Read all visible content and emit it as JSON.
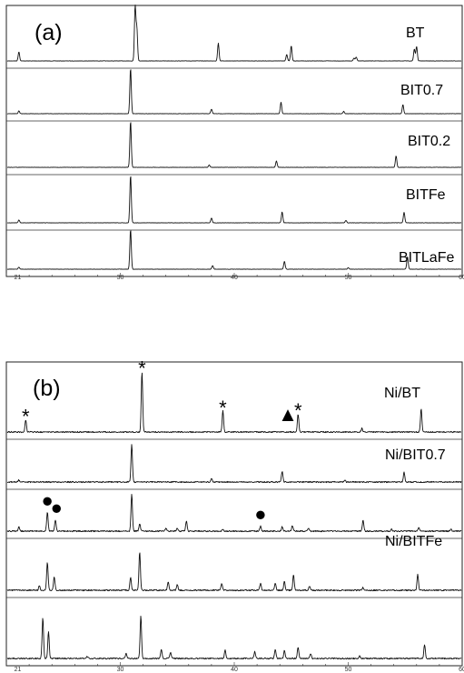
{
  "chart_data": [
    {
      "type": "line",
      "panel_label": "(a)",
      "x_ticks": [
        21,
        30,
        40,
        50,
        60
      ],
      "xlim": [
        20,
        60
      ],
      "series": [
        {
          "name": "BT",
          "peaks": [
            [
              21.1,
              0.17
            ],
            [
              31.3,
              1.0
            ],
            [
              31.45,
              0.6
            ],
            [
              38.6,
              0.33
            ],
            [
              44.6,
              0.12
            ],
            [
              45.0,
              0.28
            ],
            [
              50.5,
              0.05
            ],
            [
              50.7,
              0.07
            ],
            [
              55.8,
              0.22
            ],
            [
              56.0,
              0.27
            ]
          ],
          "markers": []
        },
        {
          "name": "BIT0.7",
          "peaks": [
            [
              21.1,
              0.06
            ],
            [
              30.9,
              1.0
            ],
            [
              38.0,
              0.1
            ],
            [
              44.1,
              0.25
            ],
            [
              49.6,
              0.05
            ],
            [
              54.8,
              0.2
            ]
          ],
          "markers": []
        },
        {
          "name": "BIT0.2",
          "peaks": [
            [
              30.9,
              1.0
            ],
            [
              37.8,
              0.05
            ],
            [
              43.7,
              0.14
            ],
            [
              54.2,
              0.25
            ]
          ],
          "markers": []
        },
        {
          "name": "BITFe",
          "peaks": [
            [
              21.1,
              0.06
            ],
            [
              30.9,
              1.0
            ],
            [
              38.0,
              0.1
            ],
            [
              44.2,
              0.23
            ],
            [
              49.8,
              0.05
            ],
            [
              54.9,
              0.22
            ]
          ],
          "markers": []
        },
        {
          "name": "BITLaFe",
          "peaks": [
            [
              21.1,
              0.05
            ],
            [
              30.9,
              1.0
            ],
            [
              38.1,
              0.09
            ],
            [
              44.4,
              0.2
            ],
            [
              50.0,
              0.04
            ],
            [
              55.2,
              0.32
            ]
          ],
          "markers": []
        }
      ]
    },
    {
      "type": "line",
      "panel_label": "(b)",
      "x_ticks": [
        21,
        30,
        40,
        50,
        60
      ],
      "xlim": [
        20,
        60
      ],
      "series": [
        {
          "name": "Ni/BT",
          "peaks": [
            [
              21.7,
              0.2
            ],
            [
              31.9,
              1.0
            ],
            [
              39.0,
              0.35
            ],
            [
              45.6,
              0.3
            ],
            [
              51.2,
              0.06
            ],
            [
              56.4,
              0.38
            ]
          ],
          "markers": [
            {
              "x": 21.7,
              "symbol": "*"
            },
            {
              "x": 31.9,
              "symbol": "*"
            },
            {
              "x": 39.0,
              "symbol": "*"
            },
            {
              "x": 45.6,
              "symbol": "*"
            },
            {
              "x": 44.7,
              "symbol": "▲"
            }
          ]
        },
        {
          "name": "Ni/BIT0.7",
          "peaks": [
            [
              21.1,
              0.05
            ],
            [
              31.0,
              1.0
            ],
            [
              38.0,
              0.1
            ],
            [
              44.2,
              0.28
            ],
            [
              49.7,
              0.04
            ],
            [
              54.9,
              0.25
            ]
          ],
          "markers": []
        },
        {
          "name": "",
          "peaks": [
            [
              21.1,
              0.12
            ],
            [
              23.6,
              0.5
            ],
            [
              24.3,
              0.3
            ],
            [
              31.0,
              1.0
            ],
            [
              31.7,
              0.2
            ],
            [
              34.0,
              0.08
            ],
            [
              35.0,
              0.07
            ],
            [
              35.8,
              0.28
            ],
            [
              39.0,
              0.05
            ],
            [
              42.3,
              0.13
            ],
            [
              44.2,
              0.12
            ],
            [
              45.1,
              0.15
            ],
            [
              46.5,
              0.07
            ],
            [
              51.3,
              0.3
            ],
            [
              53.8,
              0.05
            ],
            [
              56.2,
              0.1
            ],
            [
              59.0,
              0.05
            ]
          ],
          "markers": [
            {
              "x": 23.6,
              "symbol": "●"
            },
            {
              "x": 24.4,
              "symbol": "●"
            },
            {
              "x": 42.3,
              "symbol": "●"
            }
          ]
        },
        {
          "name": "Ni/BITFe",
          "peaks": [
            [
              22.9,
              0.1
            ],
            [
              23.6,
              0.62
            ],
            [
              24.2,
              0.3
            ],
            [
              30.9,
              0.28
            ],
            [
              31.7,
              0.85
            ],
            [
              34.2,
              0.18
            ],
            [
              35.0,
              0.12
            ],
            [
              38.9,
              0.15
            ],
            [
              42.3,
              0.15
            ],
            [
              43.6,
              0.15
            ],
            [
              44.4,
              0.2
            ],
            [
              45.2,
              0.34
            ],
            [
              46.6,
              0.1
            ],
            [
              51.3,
              0.06
            ],
            [
              56.1,
              0.35
            ]
          ],
          "markers": []
        },
        {
          "name": "",
          "peaks": [
            [
              23.2,
              0.7
            ],
            [
              23.7,
              0.45
            ],
            [
              27.1,
              0.04
            ],
            [
              30.5,
              0.08
            ],
            [
              31.8,
              0.72
            ],
            [
              33.6,
              0.15
            ],
            [
              34.4,
              0.1
            ],
            [
              39.2,
              0.14
            ],
            [
              41.8,
              0.12
            ],
            [
              43.6,
              0.16
            ],
            [
              44.4,
              0.14
            ],
            [
              45.6,
              0.2
            ],
            [
              46.7,
              0.08
            ],
            [
              51.0,
              0.05
            ],
            [
              56.7,
              0.24
            ]
          ],
          "markers": []
        }
      ]
    }
  ]
}
